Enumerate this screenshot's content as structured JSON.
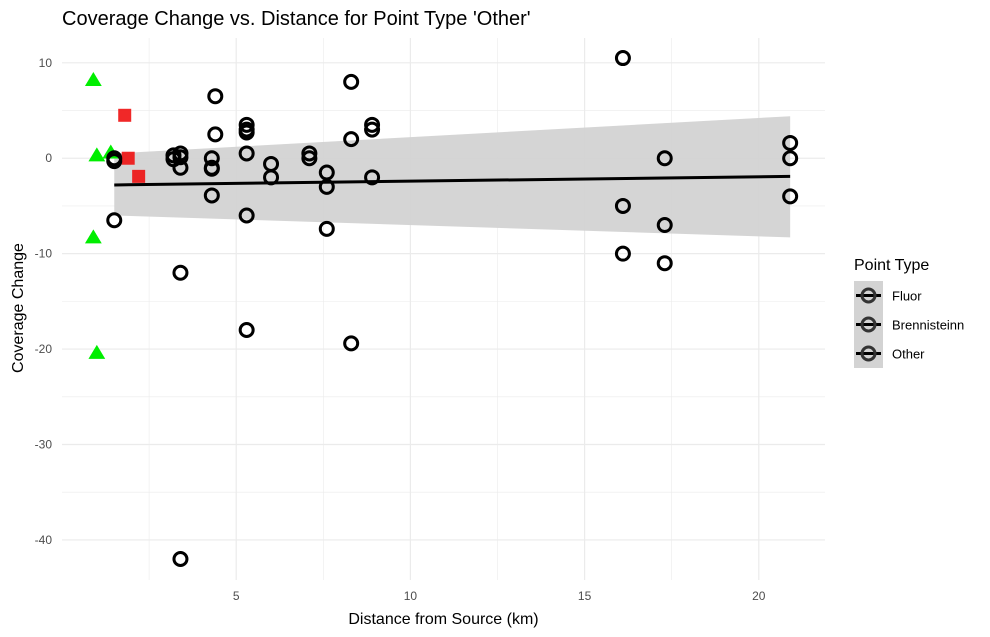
{
  "chart_data": {
    "type": "scatter",
    "title": "Coverage Change vs. Distance for Point Type 'Other'",
    "xlabel": "Distance from Source (km)",
    "ylabel": "Coverage Change",
    "xlim": [
      0,
      21.9
    ],
    "ylim": [
      -44.2,
      12.6
    ],
    "x_ticks": [
      5,
      10,
      15,
      20
    ],
    "y_ticks": [
      10,
      0,
      -10,
      -20,
      -30,
      -40
    ],
    "grid": true,
    "legend": {
      "title": "Point Type",
      "placement": "right",
      "entries": [
        "Fluor",
        "Brennisteinn",
        "Other"
      ]
    },
    "colors": {
      "Fluor": "#00ee00",
      "Brennisteinn": "#ee1111",
      "Other": "#000000",
      "ribbon": "#d3d3d3",
      "fit_line": "#000000",
      "grid": "#ebebeb"
    },
    "series": [
      {
        "name": "Fluor",
        "marker": "triangle",
        "points": [
          [
            0.9,
            8.2
          ],
          [
            1.0,
            0.3
          ],
          [
            1.4,
            0.6
          ],
          [
            0.9,
            -8.3
          ],
          [
            1.0,
            -20.4
          ]
        ]
      },
      {
        "name": "Brennisteinn",
        "marker": "square",
        "points": [
          [
            1.8,
            4.5
          ],
          [
            1.9,
            0.0
          ],
          [
            2.2,
            -1.9
          ]
        ]
      },
      {
        "name": "Other",
        "marker": "circle",
        "points": [
          [
            1.5,
            0.0
          ],
          [
            1.5,
            -0.3
          ],
          [
            1.5,
            -6.5
          ],
          [
            3.2,
            -0.1
          ],
          [
            3.2,
            0.3
          ],
          [
            3.4,
            0.5
          ],
          [
            3.4,
            0.1
          ],
          [
            3.4,
            -1.0
          ],
          [
            3.4,
            -12.0
          ],
          [
            3.4,
            -42.0
          ],
          [
            4.3,
            0.0
          ],
          [
            4.3,
            -1.1
          ],
          [
            4.3,
            -1.0
          ],
          [
            4.3,
            -3.9
          ],
          [
            4.4,
            6.5
          ],
          [
            4.4,
            2.5
          ],
          [
            5.3,
            3.5
          ],
          [
            5.3,
            3.0
          ],
          [
            5.3,
            2.7
          ],
          [
            5.3,
            0.5
          ],
          [
            5.3,
            -6.0
          ],
          [
            5.3,
            -18.0
          ],
          [
            6.0,
            -0.6
          ],
          [
            6.0,
            -2.0
          ],
          [
            7.1,
            0.5
          ],
          [
            7.1,
            0.0
          ],
          [
            7.6,
            -1.5
          ],
          [
            7.6,
            -3.0
          ],
          [
            7.6,
            -7.4
          ],
          [
            8.3,
            8.0
          ],
          [
            8.3,
            2.0
          ],
          [
            8.3,
            -19.4
          ],
          [
            8.9,
            3.5
          ],
          [
            8.9,
            3.0
          ],
          [
            8.9,
            -2.0
          ],
          [
            16.1,
            10.5
          ],
          [
            16.1,
            -5.0
          ],
          [
            16.1,
            -10.0
          ],
          [
            17.3,
            0.0
          ],
          [
            17.3,
            -7.0
          ],
          [
            17.3,
            -11.0
          ],
          [
            20.9,
            1.6
          ],
          [
            20.9,
            0.0
          ],
          [
            20.9,
            -4.0
          ]
        ]
      }
    ],
    "trend": {
      "series": "Other",
      "x_start": 1.5,
      "x_end": 20.9,
      "y_start": -2.8,
      "y_end": -1.9,
      "ci_lower_start": -6.0,
      "ci_upper_start": 0.5,
      "ci_lower_end": -8.3,
      "ci_upper_end": 4.4
    }
  }
}
